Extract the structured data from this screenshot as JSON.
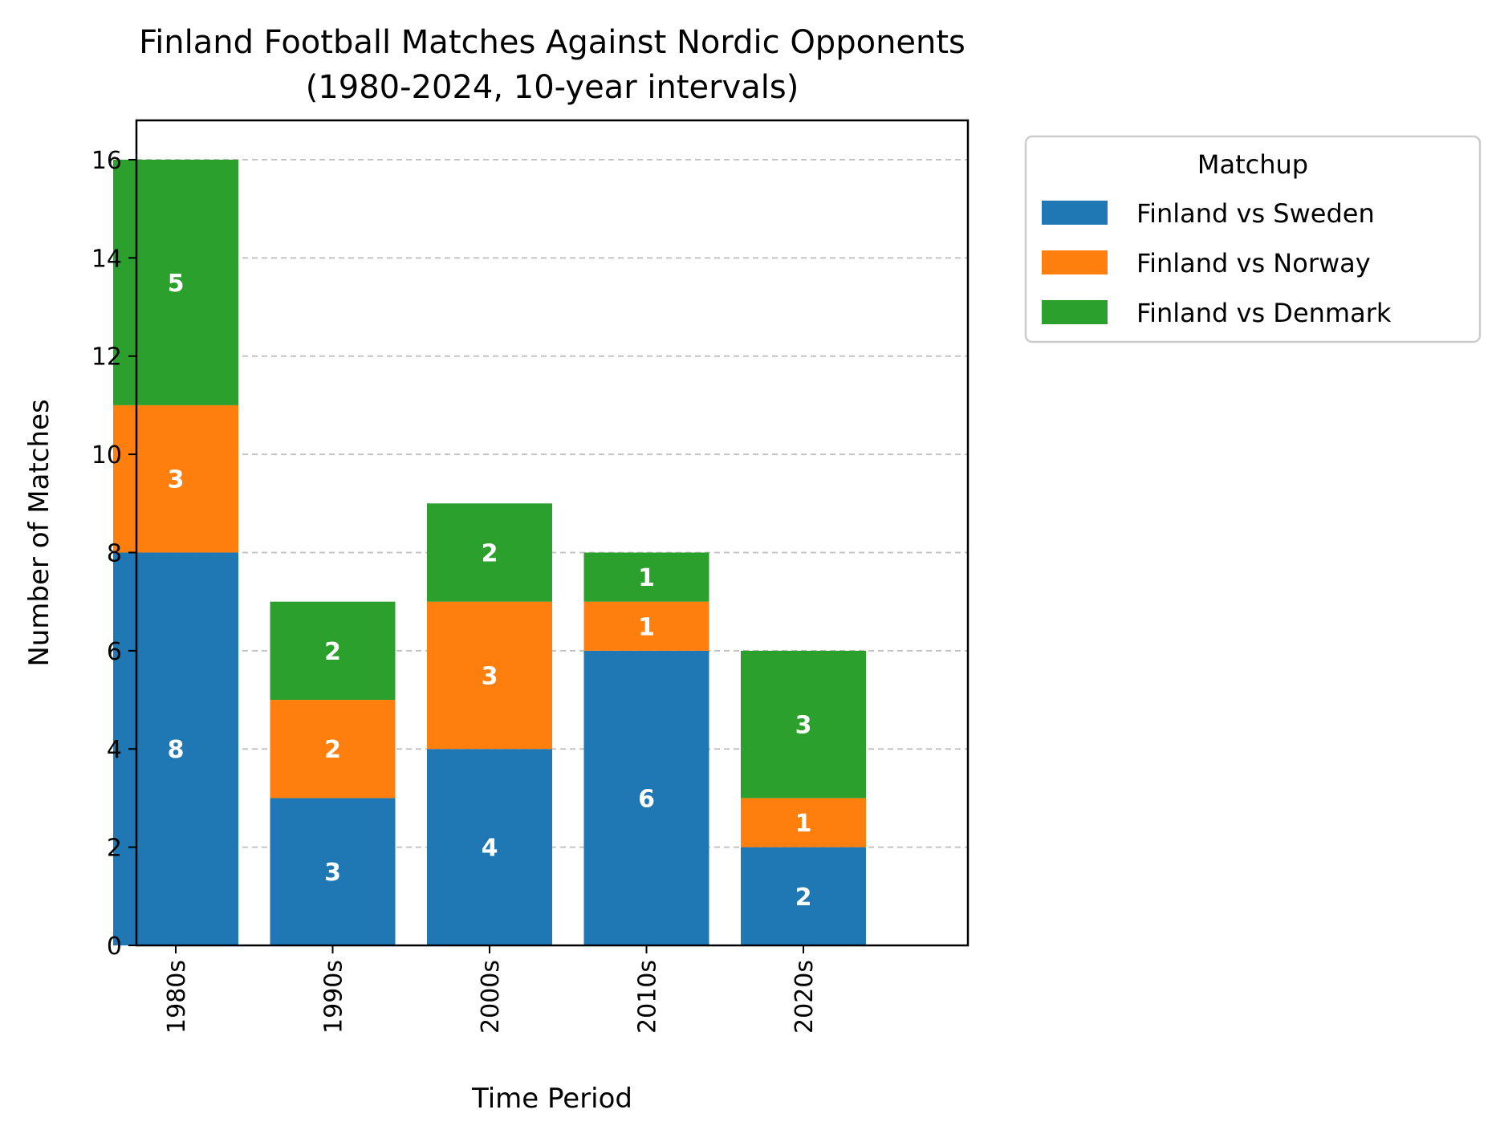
{
  "chart_data": {
    "type": "bar",
    "stacked": true,
    "title_lines": [
      "Finland Football Matches Against Nordic Opponents",
      "(1980-2024, 10-year intervals)"
    ],
    "xlabel": "Time Period",
    "ylabel": "Number of Matches",
    "categories": [
      "1980s",
      "1990s",
      "2000s",
      "2010s",
      "2020s"
    ],
    "ylim": [
      0,
      16.8
    ],
    "yticks": [
      0,
      2,
      4,
      6,
      8,
      10,
      12,
      14,
      16
    ],
    "grid": "y-dashed",
    "legend_title": "Matchup",
    "legend_position": "outside-right",
    "series": [
      {
        "name": "Finland vs Sweden",
        "color": "#1f77b4",
        "values": [
          8,
          3,
          4,
          6,
          2
        ]
      },
      {
        "name": "Finland vs Norway",
        "color": "#ff7f0e",
        "values": [
          3,
          2,
          3,
          1,
          1
        ]
      },
      {
        "name": "Finland vs Denmark",
        "color": "#2ca02c",
        "values": [
          5,
          2,
          2,
          1,
          3
        ]
      }
    ]
  }
}
